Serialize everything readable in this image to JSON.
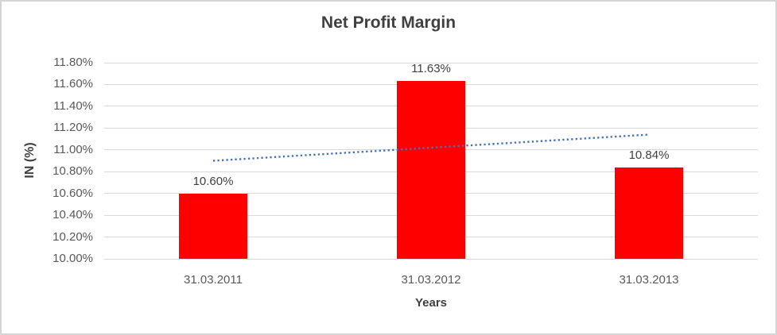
{
  "chart_data": {
    "type": "bar",
    "title": "Net Profit Margin",
    "xlabel": "Years",
    "ylabel": "IN (%)",
    "categories": [
      "31.03.2011",
      "31.03.2012",
      "31.03.2013"
    ],
    "values": [
      10.6,
      11.63,
      10.84
    ],
    "data_labels": [
      "10.60%",
      "11.63%",
      "10.84%"
    ],
    "ylim": [
      10.0,
      11.8
    ],
    "y_tick_step": 0.2,
    "y_tick_labels": [
      "10.00%",
      "10.20%",
      "10.40%",
      "10.60%",
      "10.80%",
      "11.00%",
      "11.20%",
      "11.40%",
      "11.60%",
      "11.80%"
    ],
    "grid": true,
    "legend": "none",
    "bar_color": "#FF0000",
    "gridline_color": "#D9D9D9",
    "text_color_dark": "#404040",
    "text_color_ticks": "#595959",
    "trendline": {
      "type": "linear",
      "dash": "dotted",
      "color": "#4472C4",
      "start_value": 10.9,
      "end_value": 11.14
    }
  }
}
